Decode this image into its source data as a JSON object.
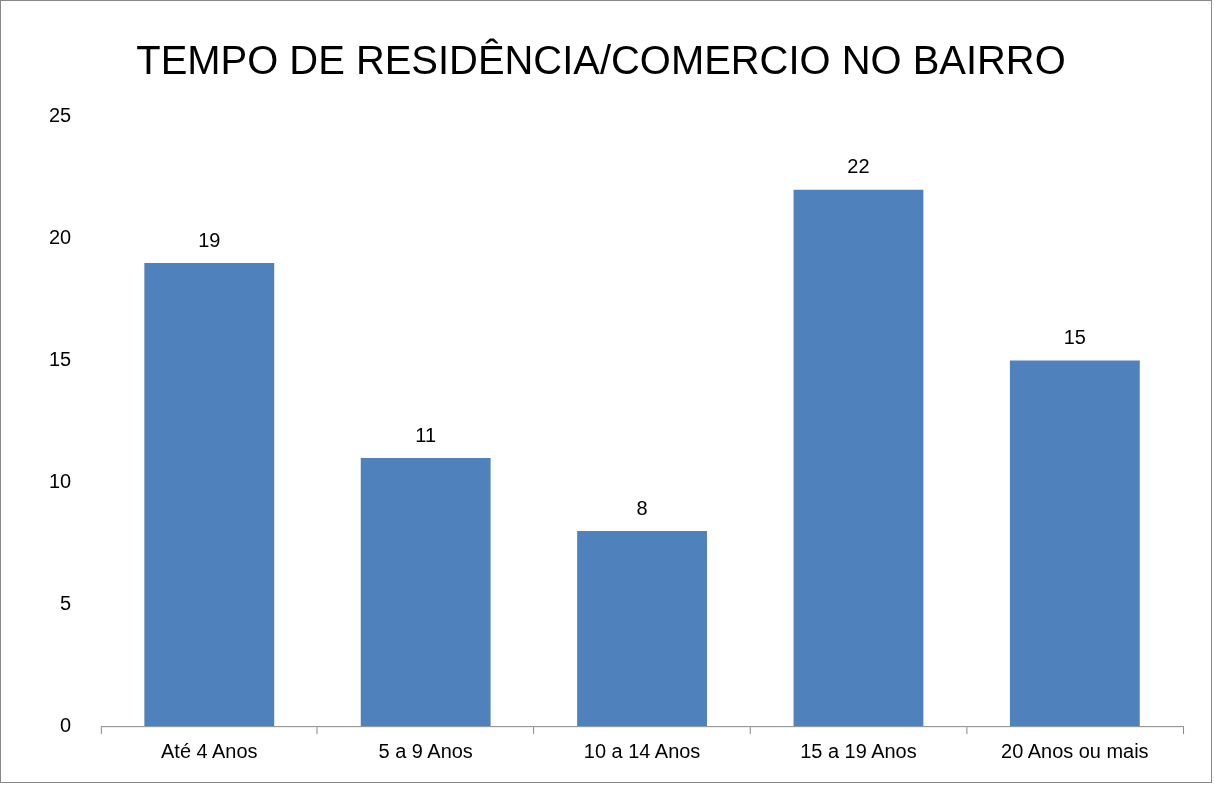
{
  "chart_data": {
    "type": "bar",
    "title": "TEMPO DE RESIDÊNCIA/COMERCIO NO BAIRRO",
    "categories": [
      "Até 4 Anos",
      "5 a 9 Anos",
      "10 a 14 Anos",
      "15 a 19 Anos",
      "20 Anos ou mais"
    ],
    "values": [
      19,
      11,
      8,
      22,
      15
    ],
    "color": "#4f81bd",
    "ylim": [
      0,
      25
    ],
    "yticks": [
      0,
      5,
      10,
      15,
      20,
      25
    ],
    "grid": false,
    "legend": false,
    "data_labels": true
  }
}
